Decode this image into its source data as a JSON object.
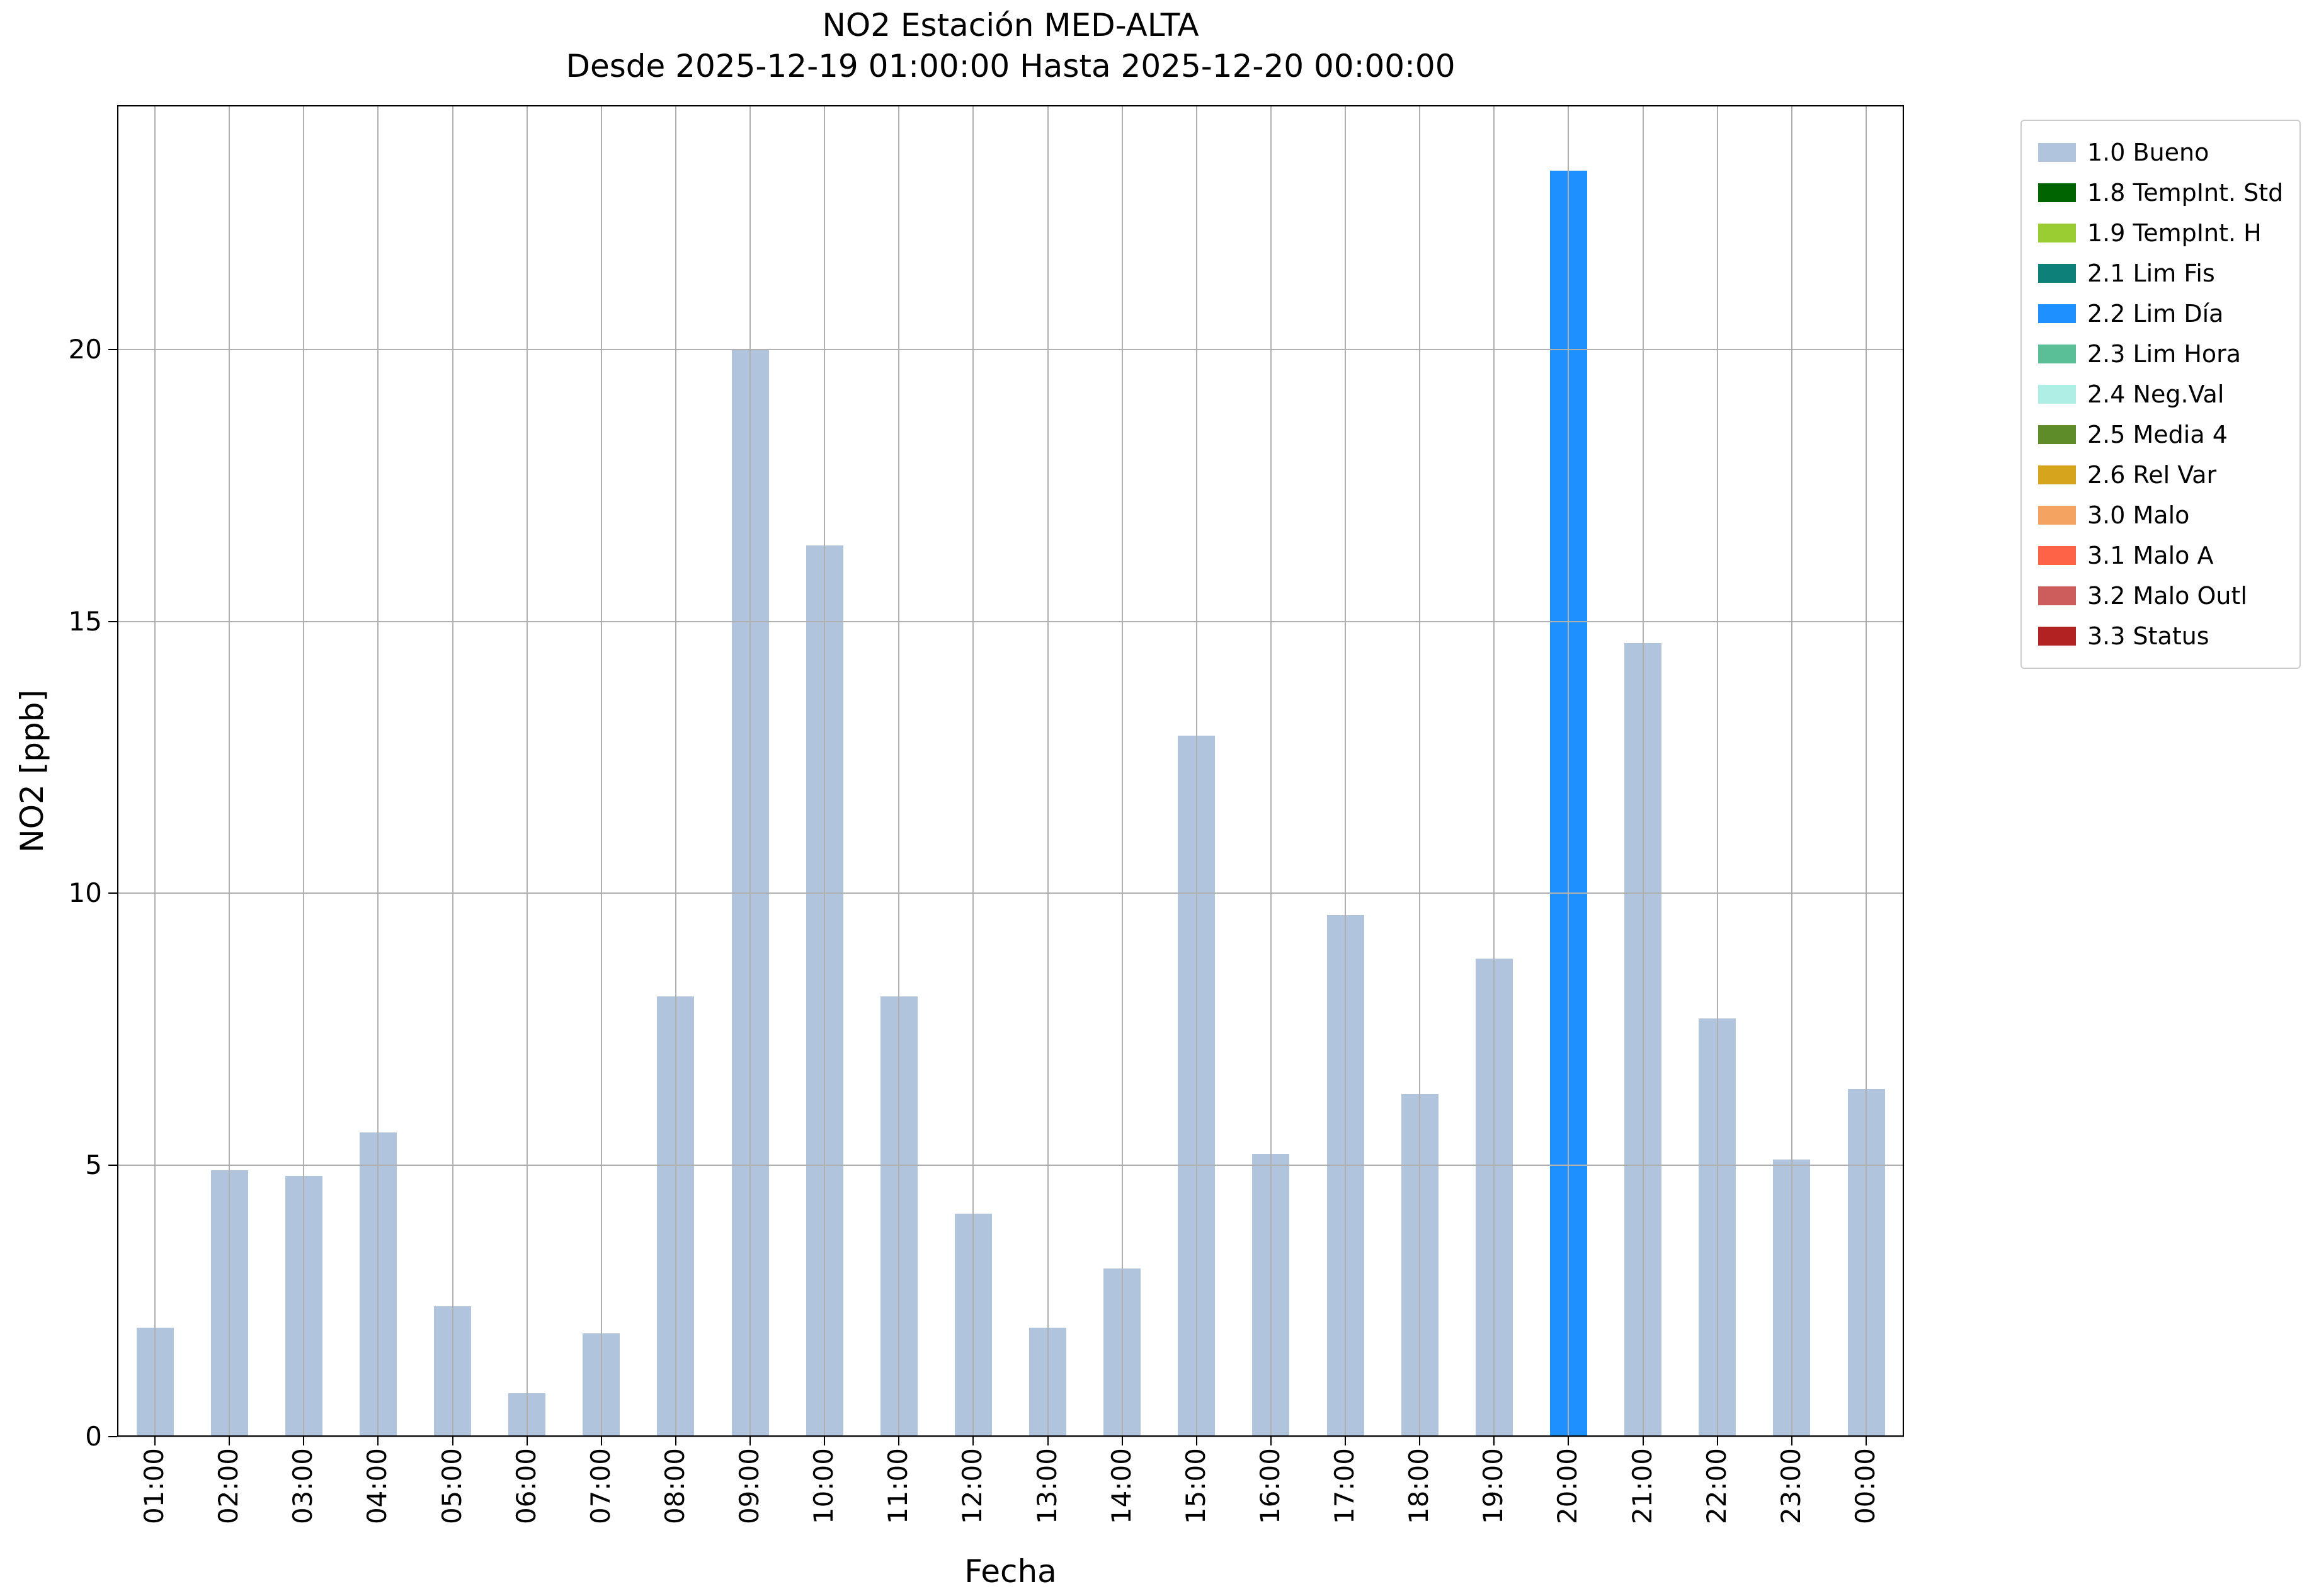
{
  "figure": {
    "title": "NO2 Estación MED-ALTA",
    "subtitle": "Desde 2025-12-19 01:00:00 Hasta 2025-12-20 00:00:00"
  },
  "chart_data": {
    "type": "bar",
    "title": "NO2 Estación MED-ALTA",
    "subtitle": "Desde 2025-12-19 01:00:00 Hasta 2025-12-20 00:00:00",
    "xlabel": "Fecha",
    "ylabel": "NO2 [ppb]",
    "ylim": [
      0,
      24.5
    ],
    "yticks": [
      0,
      5,
      10,
      15,
      20
    ],
    "grid": true,
    "legend_position": "outside-upper-right",
    "categories": [
      "01:00",
      "02:00",
      "03:00",
      "04:00",
      "05:00",
      "06:00",
      "07:00",
      "08:00",
      "09:00",
      "10:00",
      "11:00",
      "12:00",
      "13:00",
      "14:00",
      "15:00",
      "16:00",
      "17:00",
      "18:00",
      "19:00",
      "20:00",
      "21:00",
      "22:00",
      "23:00",
      "00:00"
    ],
    "values": [
      2.0,
      4.9,
      4.8,
      5.6,
      2.4,
      0.8,
      1.9,
      8.1,
      20.0,
      16.4,
      8.1,
      4.1,
      2.0,
      3.1,
      12.9,
      5.2,
      9.6,
      6.3,
      8.8,
      23.3,
      14.6,
      7.7,
      5.1,
      6.4
    ],
    "bar_flags": [
      "1.0 Bueno",
      "1.0 Bueno",
      "1.0 Bueno",
      "1.0 Bueno",
      "1.0 Bueno",
      "1.0 Bueno",
      "1.0 Bueno",
      "1.0 Bueno",
      "1.0 Bueno",
      "1.0 Bueno",
      "1.0 Bueno",
      "1.0 Bueno",
      "1.0 Bueno",
      "1.0 Bueno",
      "1.0 Bueno",
      "1.0 Bueno",
      "1.0 Bueno",
      "1.0 Bueno",
      "1.0 Bueno",
      "2.2 Lim Día",
      "1.0 Bueno",
      "1.0 Bueno",
      "1.0 Bueno",
      "1.0 Bueno"
    ],
    "legend": [
      {
        "label": "1.0 Bueno",
        "color": "#b0c4de"
      },
      {
        "label": "1.8 TempInt. Std",
        "color": "#006400"
      },
      {
        "label": "1.9 TempInt. H",
        "color": "#9acd32"
      },
      {
        "label": "2.1 Lim Fis",
        "color": "#0d8179"
      },
      {
        "label": "2.2 Lim Día",
        "color": "#1e90ff"
      },
      {
        "label": "2.3 Lim Hora",
        "color": "#5abf96"
      },
      {
        "label": "2.4 Neg.Val",
        "color": "#aeeee4"
      },
      {
        "label": "2.5 Media 4",
        "color": "#5e8c28"
      },
      {
        "label": "2.6 Rel Var",
        "color": "#d6a51c"
      },
      {
        "label": "3.0 Malo",
        "color": "#f4a460"
      },
      {
        "label": "3.1 Malo A",
        "color": "#ff6347"
      },
      {
        "label": "3.2 Malo Outl",
        "color": "#cd5c5c"
      },
      {
        "label": "3.3 Status",
        "color": "#b22222"
      }
    ]
  }
}
